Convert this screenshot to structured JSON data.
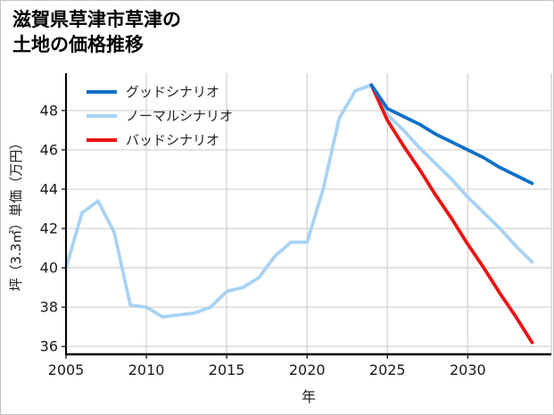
{
  "title": {
    "text": "滋賀県草津市草津の\n土地の価格推移"
  },
  "legend": {
    "items": [
      {
        "label": "グッドシナリオ",
        "color": "#1070c8"
      },
      {
        "label": "ノーマルシナリオ",
        "color": "#a8d2f4"
      },
      {
        "label": "バッドシナリオ",
        "color": "#ee1111"
      }
    ]
  },
  "chart_data": {
    "type": "line",
    "title": "滋賀県草津市草津の土地の価格推移",
    "xlabel": "年",
    "ylabel": "坪（3.3㎡）単価（万円）",
    "xlim": [
      2005,
      2035.2
    ],
    "ylim": [
      35.6,
      49.9
    ],
    "xticks": [
      2005,
      2010,
      2015,
      2020,
      2025,
      2030
    ],
    "yticks": [
      36,
      38,
      40,
      42,
      44,
      46,
      48
    ],
    "grid": true,
    "grid_color": "#d4d4d4",
    "spine_color": "#000000",
    "legend_position": "upper-left",
    "series": [
      {
        "name": "グッドシナリオ",
        "color": "#1070c8",
        "x": [
          2024,
          2025,
          2026,
          2027,
          2028,
          2029,
          2030,
          2031,
          2032,
          2033,
          2034
        ],
        "values": [
          49.3,
          48.1,
          47.7,
          47.3,
          46.8,
          46.4,
          46.0,
          45.6,
          45.1,
          44.7,
          44.3
        ]
      },
      {
        "name": "ノーマルシナリオ",
        "color": "#a8d2f4",
        "x": [
          2005,
          2006,
          2007,
          2008,
          2009,
          2010,
          2011,
          2012,
          2013,
          2014,
          2015,
          2016,
          2017,
          2018,
          2019,
          2020,
          2021,
          2022,
          2023,
          2024,
          2025,
          2026,
          2027,
          2028,
          2029,
          2030,
          2031,
          2032,
          2033,
          2034
        ],
        "values": [
          40.0,
          42.8,
          43.4,
          41.8,
          38.1,
          38.0,
          37.5,
          37.6,
          37.7,
          38.0,
          38.8,
          39.0,
          39.5,
          40.6,
          41.3,
          41.3,
          44.0,
          47.6,
          49.0,
          49.3,
          47.8,
          47.0,
          46.1,
          45.3,
          44.5,
          43.6,
          42.8,
          42.0,
          41.1,
          40.3
        ]
      },
      {
        "name": "バッドシナリオ",
        "color": "#ee1111",
        "x": [
          2024,
          2025,
          2026,
          2027,
          2028,
          2029,
          2030,
          2031,
          2032,
          2033,
          2034
        ],
        "values": [
          49.3,
          47.5,
          46.2,
          45.0,
          43.7,
          42.5,
          41.2,
          40.0,
          38.7,
          37.5,
          36.2
        ]
      }
    ]
  }
}
